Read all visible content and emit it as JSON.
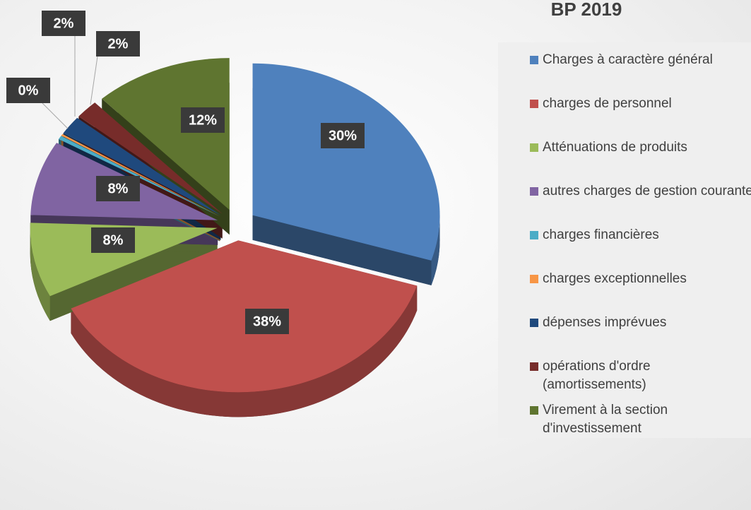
{
  "chart_data": {
    "type": "pie",
    "title": "BP 2019",
    "categories": [
      "Charges à caractère général",
      "charges de personnel",
      "Atténuations de produits",
      "autres charges de gestion courante",
      "charges financières",
      "charges exceptionnelles",
      "dépenses imprévues",
      "opérations d'ordre (amortissements)",
      "Virement à la section d'investissement"
    ],
    "values": [
      30,
      38,
      8,
      8,
      0.4,
      0.2,
      2,
      2,
      12
    ],
    "value_labels": [
      "30%",
      "38%",
      "8%",
      "8%",
      "0%",
      null,
      "2%",
      "2%",
      "12%"
    ],
    "colors": [
      "#4f81bd",
      "#c0504d",
      "#9bbb59",
      "#8064a2",
      "#4bacc6",
      "#f79646",
      "#1f497d",
      "#772c2a",
      "#5f7530"
    ],
    "legend": "right"
  }
}
